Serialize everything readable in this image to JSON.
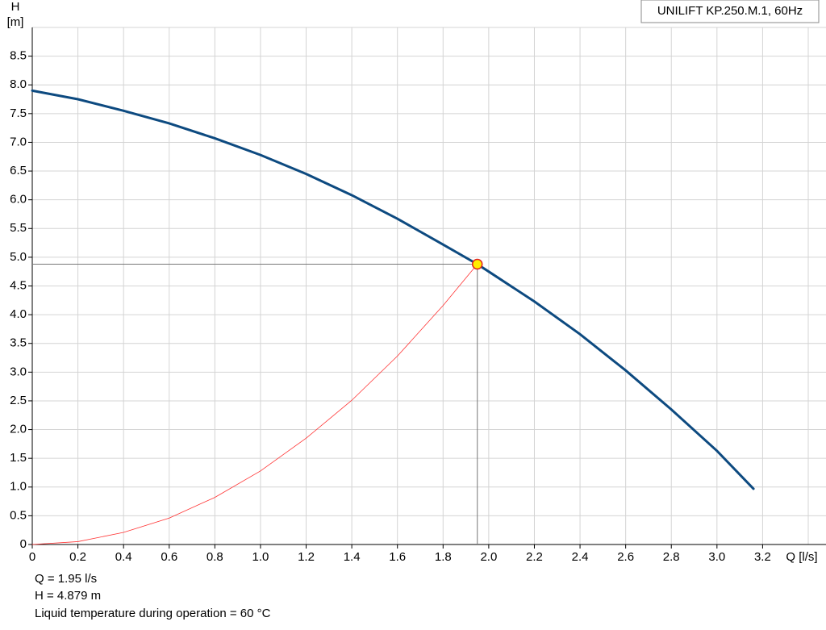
{
  "chart_data": {
    "type": "line",
    "legend_title": "UNILIFT KP.250.M.1, 60Hz",
    "y_label": "H",
    "y_unit": "[m]",
    "x_label": "Q [l/s]",
    "xlim": [
      0,
      3.4
    ],
    "ylim": [
      0,
      9
    ],
    "grid": true,
    "xticks": [
      0,
      0.2,
      0.4,
      0.6,
      0.8,
      {
        "value": 1,
        "label": "1.0"
      },
      1.2,
      1.4,
      1.6,
      1.8,
      {
        "value": 2,
        "label": "2.0"
      },
      2.2,
      2.4,
      2.6,
      2.8,
      {
        "value": 3,
        "label": "3.0"
      },
      3.2
    ],
    "yticks": [
      0,
      0.5,
      {
        "value": 1,
        "label": "1.0"
      },
      1.5,
      {
        "value": 2,
        "label": "2.0"
      },
      2.5,
      {
        "value": 3,
        "label": "3.0"
      },
      3.5,
      {
        "value": 4,
        "label": "4.0"
      },
      4.5,
      {
        "value": 5,
        "label": "5.0"
      },
      5.5,
      {
        "value": 6,
        "label": "6.0"
      },
      6.5,
      {
        "value": 7,
        "label": "7.0"
      },
      7.5,
      {
        "value": 8,
        "label": "8.0"
      },
      8.5
    ],
    "series": [
      {
        "color": "#0d4a80",
        "width": 3,
        "x": [
          0,
          0.2,
          0.4,
          0.6,
          0.8,
          1.0,
          1.2,
          1.4,
          1.6,
          1.8,
          1.95,
          2.0,
          2.2,
          2.4,
          2.6,
          2.8,
          3.0,
          3.16
        ],
        "values": [
          7.9,
          7.75,
          7.55,
          7.33,
          7.07,
          6.78,
          6.45,
          6.08,
          5.67,
          5.22,
          4.879,
          4.75,
          4.23,
          3.66,
          3.03,
          2.35,
          1.63,
          0.97
        ]
      },
      {
        "color": "#ff3333",
        "width": 0.8,
        "x": [
          0,
          0.2,
          0.4,
          0.6,
          0.8,
          1.0,
          1.2,
          1.4,
          1.6,
          1.8,
          1.95
        ],
        "values": [
          0,
          0.05,
          0.21,
          0.46,
          0.82,
          1.28,
          1.85,
          2.51,
          3.28,
          4.16,
          4.879
        ]
      }
    ],
    "operating_point": {
      "x": 1.95,
      "y": 4.879
    },
    "info": [
      "Q = 1.95 l/s",
      "H = 4.879 m",
      "Liquid temperature during operation = 60 °C"
    ]
  }
}
